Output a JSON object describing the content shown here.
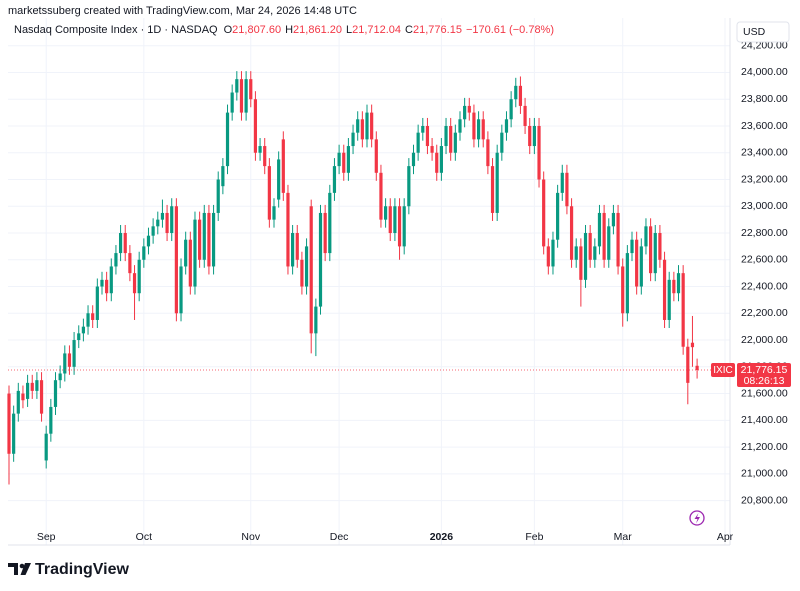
{
  "header": {
    "attribution": "marketssuberg created with TradingView.com, Mar 24, 2026 14:48 UTC",
    "instrument": "Nasdaq Composite Index · 1D · NASDAQ",
    "ohlc": [
      {
        "key": "O",
        "value": "21,807.60"
      },
      {
        "key": "H",
        "value": "21,861.20"
      },
      {
        "key": "L",
        "value": "21,712.04"
      },
      {
        "key": "C",
        "value": "21,776.15"
      }
    ],
    "change": "−170.61 (−0.78%)",
    "currency": "USD"
  },
  "price_label": {
    "symbol": "IXIC",
    "price": "21,776.15",
    "countdown": "08:26:13"
  },
  "footer": {
    "logo": "TradingView"
  },
  "chart_data": {
    "type": "candlestick",
    "up_color": "#089981",
    "down_color": "#f23645",
    "grid": true,
    "ylim": [
      20640,
      24280
    ],
    "yticks": [
      {
        "value": 20800,
        "label": "20,800.00"
      },
      {
        "value": 21000,
        "label": "21,000.00"
      },
      {
        "value": 21200,
        "label": "21,200.00"
      },
      {
        "value": 21400,
        "label": "21,400.00"
      },
      {
        "value": 21600,
        "label": "21,600.00"
      },
      {
        "value": 21800,
        "label": "21,800.00"
      },
      {
        "value": 22000,
        "label": "22,000.00"
      },
      {
        "value": 22200,
        "label": "22,200.00"
      },
      {
        "value": 22400,
        "label": "22,400.00"
      },
      {
        "value": 22600,
        "label": "22,600.00"
      },
      {
        "value": 22800,
        "label": "22,800.00"
      },
      {
        "value": 23000,
        "label": "23,000.00"
      },
      {
        "value": 23200,
        "label": "23,200.00"
      },
      {
        "value": 23400,
        "label": "23,400.00"
      },
      {
        "value": 23600,
        "label": "23,600.00"
      },
      {
        "value": 23800,
        "label": "23,800.00"
      },
      {
        "value": 24000,
        "label": "24,000.00"
      },
      {
        "value": 24200,
        "label": "24,200.00"
      }
    ],
    "xlim": [
      0,
      155
    ],
    "xticks": [
      {
        "value": 8,
        "label": "Sep"
      },
      {
        "value": 29,
        "label": "Oct"
      },
      {
        "value": 52,
        "label": "Nov"
      },
      {
        "value": 71,
        "label": "Dec"
      },
      {
        "value": 93,
        "label": "2026"
      },
      {
        "value": 113,
        "label": "Feb"
      },
      {
        "value": 132,
        "label": "Mar"
      },
      {
        "value": 154,
        "label": "Apr"
      }
    ],
    "open": [
      21600,
      21150,
      21450,
      21600,
      21560,
      21680,
      21620,
      21700,
      21100,
      21300,
      21500,
      21700,
      21750,
      21900,
      21800,
      22000,
      22050,
      22100,
      22200,
      22150,
      22400,
      22450,
      22350,
      22550,
      22650,
      22800,
      22650,
      22500,
      22350,
      22600,
      22700,
      22780,
      22850,
      22900,
      22950,
      22800,
      23000,
      22200,
      22550,
      22750,
      22400,
      22900,
      22600,
      22950,
      22550,
      22950,
      23150,
      23300,
      23700,
      23850,
      23950,
      23700,
      23950,
      23800,
      23400,
      23450,
      23300,
      22900,
      23050,
      23500,
      23100,
      22550,
      22800,
      22600,
      22400,
      23000,
      22050,
      22250,
      22950,
      22650,
      23100,
      23300,
      23400,
      23250,
      23450,
      23550,
      23650,
      23500,
      23700,
      23500,
      23250,
      22900,
      23000,
      22800,
      23000,
      22700,
      23000,
      23300,
      23400,
      23550,
      23600,
      23450,
      23400,
      23250,
      23450,
      23600,
      23400,
      23550,
      23650,
      23750,
      23700,
      23500,
      23650,
      23500,
      23300,
      22950,
      23400,
      23550,
      23650,
      23800,
      23900,
      23750,
      23600,
      23450,
      23600,
      23200,
      22700,
      22550,
      22750,
      23100,
      23250,
      23000,
      22600,
      22700,
      22450,
      22800,
      22600,
      22700,
      22950,
      22600,
      22850,
      22950,
      22550,
      22200,
      22650,
      22750,
      22400,
      22700,
      22850,
      22500,
      22800,
      22600,
      22150,
      22450,
      22350,
      22500,
      21950,
      21980,
      21807.6
    ],
    "high": [
      21660,
      21510,
      21680,
      21660,
      21740,
      21740,
      21760,
      21760,
      21360,
      21560,
      21760,
      21810,
      21960,
      21960,
      22060,
      22110,
      22160,
      22260,
      22260,
      22460,
      22510,
      22510,
      22610,
      22710,
      22860,
      22860,
      22710,
      22560,
      22660,
      22760,
      22840,
      22910,
      22960,
      23050,
      23010,
      23060,
      23060,
      22610,
      22810,
      22810,
      22960,
      22960,
      23010,
      23010,
      23010,
      23260,
      23360,
      23760,
      23910,
      24010,
      24010,
      24010,
      24010,
      23860,
      23510,
      23510,
      23360,
      23060,
      23410,
      23560,
      23160,
      22860,
      22860,
      22660,
      22760,
      23050,
      22310,
      23010,
      23010,
      23160,
      23360,
      23460,
      23460,
      23510,
      23610,
      23710,
      23710,
      23760,
      23760,
      23560,
      23310,
      23060,
      23060,
      23060,
      23060,
      23060,
      23360,
      23460,
      23610,
      23660,
      23660,
      23510,
      23460,
      23510,
      23660,
      23660,
      23610,
      23710,
      23810,
      23810,
      23760,
      23710,
      23710,
      23560,
      23360,
      23460,
      23610,
      23710,
      23860,
      23960,
      23970,
      23810,
      23660,
      23660,
      23660,
      23260,
      22760,
      22810,
      23160,
      23310,
      23310,
      23060,
      22760,
      22760,
      22860,
      22860,
      22760,
      23010,
      23010,
      22910,
      23010,
      23010,
      22610,
      22710,
      22810,
      22810,
      22760,
      22910,
      22910,
      22860,
      22860,
      22660,
      22510,
      22510,
      22560,
      22560,
      22010,
      22180,
      21861.2
    ],
    "low": [
      20920,
      21090,
      21390,
      21490,
      21500,
      21560,
      21560,
      21390,
      21040,
      21240,
      21440,
      21640,
      21690,
      21740,
      21740,
      21940,
      21990,
      22040,
      22090,
      22090,
      22340,
      22290,
      22290,
      22490,
      22590,
      22590,
      22440,
      22150,
      22290,
      22540,
      22640,
      22720,
      22790,
      22840,
      22740,
      22740,
      22140,
      22140,
      22490,
      22340,
      22340,
      22540,
      22540,
      22490,
      22490,
      22890,
      23090,
      23240,
      23640,
      23790,
      23640,
      23640,
      23740,
      23340,
      23340,
      23240,
      22840,
      22840,
      22990,
      23040,
      22490,
      22490,
      22540,
      22340,
      22340,
      21900,
      21880,
      22190,
      22590,
      22590,
      23040,
      23240,
      23190,
      23190,
      23390,
      23490,
      23440,
      23440,
      23440,
      23190,
      22840,
      22840,
      22740,
      22740,
      22600,
      22640,
      22940,
      23240,
      23340,
      23490,
      23390,
      23340,
      23190,
      23190,
      23390,
      23340,
      23340,
      23490,
      23590,
      23640,
      23440,
      23440,
      23440,
      23240,
      22890,
      22890,
      23340,
      23490,
      23590,
      23740,
      23690,
      23540,
      23390,
      23390,
      23140,
      22640,
      22490,
      22490,
      22690,
      23040,
      22940,
      22540,
      22540,
      22250,
      22390,
      22540,
      22540,
      22640,
      22540,
      22540,
      22790,
      22490,
      22100,
      22140,
      22590,
      22340,
      22340,
      22640,
      22440,
      22440,
      22540,
      22090,
      22090,
      22290,
      22290,
      21890,
      21520,
      21800,
      21712.04
    ],
    "close": [
      21150,
      21450,
      21620,
      21550,
      21680,
      21620,
      21700,
      21450,
      21300,
      21500,
      21700,
      21750,
      21900,
      21800,
      22000,
      22050,
      22100,
      22200,
      22150,
      22400,
      22450,
      22350,
      22550,
      22650,
      22800,
      22650,
      22500,
      22350,
      22600,
      22700,
      22780,
      22850,
      22900,
      22950,
      22800,
      23000,
      22200,
      22550,
      22750,
      22400,
      22900,
      22600,
      22950,
      22550,
      22950,
      23200,
      23300,
      23700,
      23850,
      23950,
      23700,
      23950,
      23800,
      23400,
      23450,
      23300,
      22900,
      23000,
      23350,
      23100,
      22550,
      22800,
      22600,
      22400,
      22700,
      22050,
      22250,
      22950,
      22650,
      23100,
      23300,
      23400,
      23250,
      23450,
      23550,
      23650,
      23500,
      23700,
      23500,
      23250,
      22900,
      23000,
      22800,
      23000,
      22700,
      23000,
      23300,
      23400,
      23550,
      23600,
      23450,
      23400,
      23250,
      23450,
      23600,
      23400,
      23550,
      23650,
      23750,
      23700,
      23500,
      23650,
      23500,
      23300,
      22950,
      23400,
      23550,
      23650,
      23800,
      23900,
      23750,
      23600,
      23450,
      23600,
      23200,
      22700,
      22550,
      22750,
      23100,
      23250,
      23000,
      22600,
      22700,
      22450,
      22800,
      22600,
      22700,
      22950,
      22600,
      22850,
      22950,
      22550,
      22200,
      22650,
      22750,
      22400,
      22700,
      22850,
      22500,
      22800,
      22600,
      22150,
      22450,
      22350,
      22500,
      21950,
      21680,
      21946.76,
      21776.15
    ]
  }
}
